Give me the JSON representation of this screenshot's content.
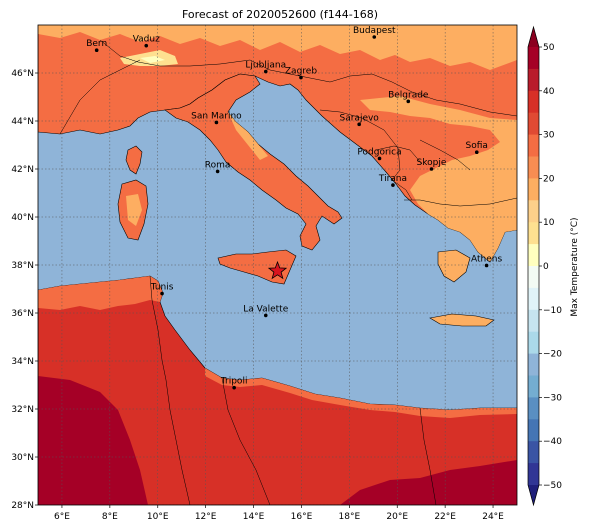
{
  "title": "Forecast of 2020052600 (f144-168)",
  "colorbar": {
    "label": "Max Temperature (°C)",
    "ticks": [
      "50",
      "40",
      "30",
      "20",
      "10",
      "0",
      "−10",
      "−20",
      "−30",
      "−40",
      "−50"
    ],
    "bands": [
      {
        "range": "45 to 50",
        "color": "#a50026"
      },
      {
        "range": "40 to 45",
        "color": "#b91c2b"
      },
      {
        "range": "35 to 40",
        "color": "#d73027"
      },
      {
        "range": "30 to 35",
        "color": "#e04a33"
      },
      {
        "range": "25 to 30",
        "color": "#f46d43"
      },
      {
        "range": "20 to 25",
        "color": "#f88d52"
      },
      {
        "range": "15 to 20",
        "color": "#fdae61"
      },
      {
        "range": "10 to 15",
        "color": "#fdd08a"
      },
      {
        "range": "5 to 10",
        "color": "#fee090"
      },
      {
        "range": "0 to 5",
        "color": "#ffffbf"
      },
      {
        "range": "-5 to 0",
        "color": "#f3fbf4"
      },
      {
        "range": "-10 to -5",
        "color": "#e0f3f8"
      },
      {
        "range": "-15 to -10",
        "color": "#c6e4ef"
      },
      {
        "range": "-20 to -15",
        "color": "#abd9e9"
      },
      {
        "range": "-25 to -20",
        "color": "#8fb4d8"
      },
      {
        "range": "-30 to -25",
        "color": "#74add1"
      },
      {
        "range": "-35 to -30",
        "color": "#5a8fc2"
      },
      {
        "range": "-40 to -35",
        "color": "#4575b4"
      },
      {
        "range": "-45 to -40",
        "color": "#3a54a4"
      },
      {
        "range": "-50 to -45",
        "color": "#313695"
      }
    ],
    "extend_max_color": "#8b0020",
    "extend_min_color": "#1f1f7a"
  },
  "map": {
    "lon_range": [
      5,
      25
    ],
    "lat_range": [
      28,
      48
    ],
    "sea_color": "#8fb4d8",
    "lon_ticks": [
      {
        "value": 6,
        "label": "6°E"
      },
      {
        "value": 8,
        "label": "8°E"
      },
      {
        "value": 10,
        "label": "10°E"
      },
      {
        "value": 12,
        "label": "12°E"
      },
      {
        "value": 14,
        "label": "14°E"
      },
      {
        "value": 16,
        "label": "16°E"
      },
      {
        "value": 18,
        "label": "18°E"
      },
      {
        "value": 20,
        "label": "20°E"
      },
      {
        "value": 22,
        "label": "22°E"
      },
      {
        "value": 24,
        "label": "24°E"
      }
    ],
    "lat_ticks": [
      {
        "value": 46,
        "label": "46°N"
      },
      {
        "value": 44,
        "label": "44°N"
      },
      {
        "value": 42,
        "label": "42°N"
      },
      {
        "value": 40,
        "label": "40°N"
      },
      {
        "value": 38,
        "label": "38°N"
      },
      {
        "value": 36,
        "label": "36°N"
      },
      {
        "value": 34,
        "label": "34°N"
      },
      {
        "value": 32,
        "label": "32°N"
      },
      {
        "value": 30,
        "label": "30°N"
      },
      {
        "value": 28,
        "label": "28°N"
      }
    ],
    "cities": [
      {
        "name": "Bern",
        "lon": 7.45,
        "lat": 46.95
      },
      {
        "name": "Vaduz",
        "lon": 9.52,
        "lat": 47.14
      },
      {
        "name": "Budapest",
        "lon": 19.04,
        "lat": 47.5
      },
      {
        "name": "Ljubljana",
        "lon": 14.51,
        "lat": 46.06
      },
      {
        "name": "Zagreb",
        "lon": 15.98,
        "lat": 45.81
      },
      {
        "name": "Belgrade",
        "lon": 20.46,
        "lat": 44.82
      },
      {
        "name": "San Marino",
        "lon": 12.45,
        "lat": 43.94
      },
      {
        "name": "Sarajevo",
        "lon": 18.41,
        "lat": 43.86
      },
      {
        "name": "Sofia",
        "lon": 23.32,
        "lat": 42.7
      },
      {
        "name": "Podgorica",
        "lon": 19.26,
        "lat": 42.44
      },
      {
        "name": "Roma",
        "lon": 12.5,
        "lat": 41.9
      },
      {
        "name": "Skopje",
        "lon": 21.43,
        "lat": 42.0
      },
      {
        "name": "Tirana",
        "lon": 19.82,
        "lat": 41.33
      },
      {
        "name": "Athens",
        "lon": 23.73,
        "lat": 37.98
      },
      {
        "name": "Tunis",
        "lon": 10.18,
        "lat": 36.81
      },
      {
        "name": "La Valette",
        "lon": 14.51,
        "lat": 35.9
      },
      {
        "name": "Tripoli",
        "lon": 13.19,
        "lat": 32.89
      }
    ],
    "marker": {
      "lon": 15.0,
      "lat": 37.75,
      "color": "#d9141e",
      "shape": "star"
    }
  }
}
